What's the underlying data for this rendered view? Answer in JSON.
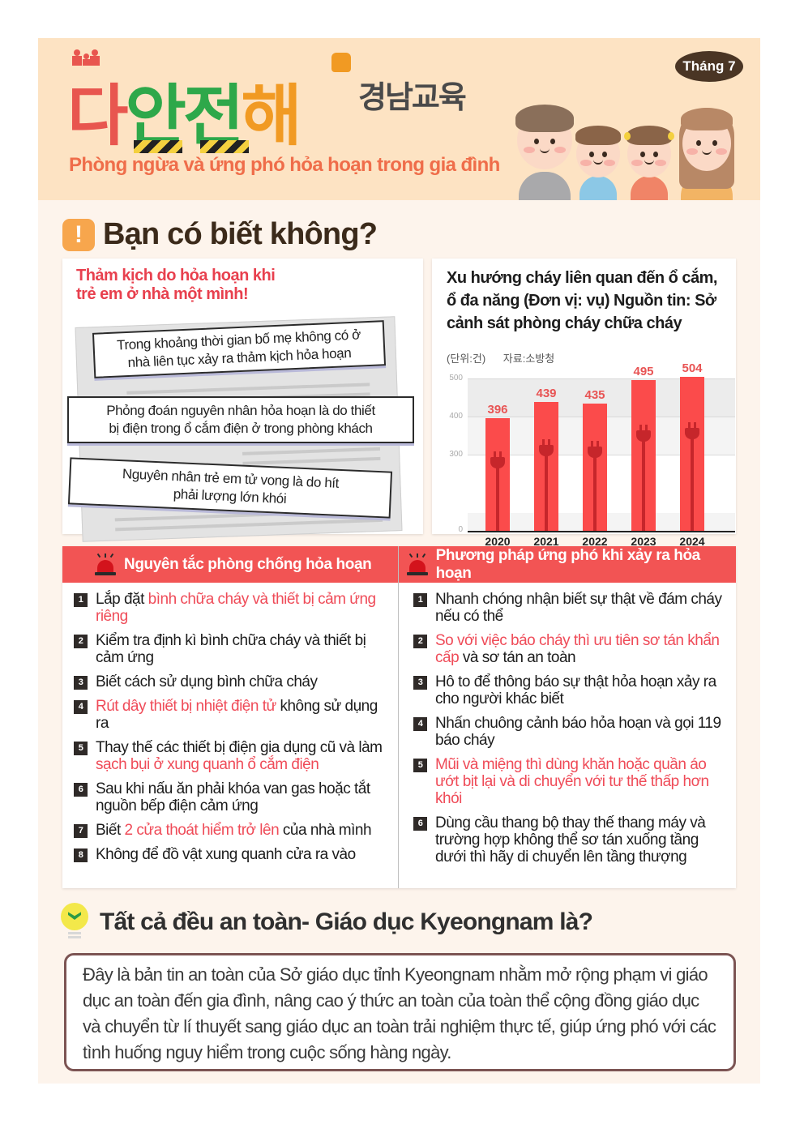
{
  "header": {
    "logo_chars": [
      "다",
      "안",
      "전",
      "해"
    ],
    "logo_sub": "경남교육",
    "subtitle": "Phòng ngừa và ứng phó hỏa hoạn trong gia đình",
    "month_badge": "Tháng 7",
    "illustration": "family-of-four-illustration",
    "colors": {
      "background": "#fde3c3",
      "subtitle": "#ef6d4a",
      "badge": "#4a3524"
    }
  },
  "did_you_know": {
    "icon": "exclamation-icon",
    "title": "Bạn có biết không?",
    "news": {
      "headline_lines": [
        "Thảm kịch do hỏa hoạn khi",
        "trẻ em ở nhà một mình!"
      ],
      "strips": [
        {
          "lines": [
            "Trong khoảng thời gian bố mẹ không có ở",
            "nhà liên tục xảy ra thảm kịch hỏa hoạn"
          ]
        },
        {
          "lines": [
            "Phỏng đoán nguyên nhân hỏa hoạn là do thiết",
            "bị điện trong ổ cắm điện ở trong phòng khách"
          ]
        },
        {
          "lines": [
            "Nguyên nhân trẻ em tử vong là do hít",
            "phải lượng lớn khói"
          ]
        }
      ]
    },
    "chart": {
      "title": "Xu hướng cháy liên quan đến ổ cắm, ổ đa năng (Đơn vị: vụ) Nguồn tin: Sở cảnh sát phòng cháy chữa cháy",
      "unit_label": "(단위:건)",
      "source_label": "자료:소방청",
      "y_ticks": [
        "500",
        "400",
        "300",
        "0"
      ]
    }
  },
  "chart_data": {
    "type": "bar",
    "title": "Xu hướng cháy liên quan đến ổ cắm, ổ đa năng (Đơn vị: vụ) Nguồn tin: Sở cảnh sát phòng cháy chữa cháy",
    "subtitle": "(단위:건) 자료:소방청",
    "categories": [
      "2020",
      "2021",
      "2022",
      "2023",
      "2024"
    ],
    "values": [
      396,
      439,
      435,
      495,
      504
    ],
    "xlabel": "",
    "ylabel": "",
    "y_ticks": [
      0,
      300,
      400,
      500
    ],
    "ylim": [
      0,
      520
    ],
    "axis_break": "between 0 and 300",
    "grid": true,
    "legend": "none",
    "bar_color": "#fb4b4b",
    "label_color": "#e85454"
  },
  "prevention": {
    "icon": "siren-icon",
    "title": "Nguyên tắc phòng chống hỏa hoạn",
    "items": [
      {
        "num": "1",
        "parts": [
          {
            "t": "Lắp đặt ",
            "hl": false
          },
          {
            "t": "bình chữa cháy và thiết bị cảm ứng riêng",
            "hl": true
          }
        ]
      },
      {
        "num": "2",
        "parts": [
          {
            "t": "Kiểm tra định kì bình chữa cháy và thiết bị cảm ứng",
            "hl": false
          }
        ]
      },
      {
        "num": "3",
        "parts": [
          {
            "t": "Biết cách sử dụng bình chữa cháy",
            "hl": false
          }
        ]
      },
      {
        "num": "4",
        "parts": [
          {
            "t": "Rút dây thiết bị nhiệt điện tử",
            "hl": true
          },
          {
            "t": " không sử dụng ra",
            "hl": false
          }
        ]
      },
      {
        "num": "5",
        "parts": [
          {
            "t": "Thay thế các thiết bị điện gia dụng cũ và làm ",
            "hl": false
          },
          {
            "t": "sạch bụi ở xung quanh ổ cắm điện",
            "hl": true
          }
        ]
      },
      {
        "num": "6",
        "parts": [
          {
            "t": "Sau khi nấu ăn phải khóa van gas hoặc tắt nguồn bếp điện cảm ứng",
            "hl": false
          }
        ]
      },
      {
        "num": "7",
        "parts": [
          {
            "t": "Biết ",
            "hl": false
          },
          {
            "t": "2 cửa thoát hiểm trở lên",
            "hl": true
          },
          {
            "t": " của nhà mình",
            "hl": false
          }
        ]
      },
      {
        "num": "8",
        "parts": [
          {
            "t": "Không để đồ vật xung quanh cửa ra vào",
            "hl": false
          }
        ]
      }
    ]
  },
  "response": {
    "icon": "siren-icon",
    "title": "Phương pháp ứng phó khi xảy ra hỏa hoạn",
    "items": [
      {
        "num": "1",
        "parts": [
          {
            "t": "Nhanh chóng nhận biết sự thật về đám cháy nếu có thể",
            "hl": false
          }
        ]
      },
      {
        "num": "2",
        "parts": [
          {
            "t": "So với việc báo cháy thì ưu tiên sơ tán khẩn cấp",
            "hl": true
          },
          {
            "t": " và sơ tán an toàn",
            "hl": false
          }
        ]
      },
      {
        "num": "3",
        "parts": [
          {
            "t": "Hô to để thông báo sự thật hỏa hoạn xảy ra cho người khác biết",
            "hl": false
          }
        ]
      },
      {
        "num": "4",
        "parts": [
          {
            "t": "Nhấn chuông cảnh báo hỏa hoạn và gọi 119 báo cháy",
            "hl": false
          }
        ]
      },
      {
        "num": "5",
        "parts": [
          {
            "t": "Mũi và miệng thì dùng khăn hoặc quần áo ướt bịt lại và di chuyển với tư thế thấp hơn khói",
            "hl": true
          }
        ]
      },
      {
        "num": "6",
        "parts": [
          {
            "t": "Dùng cầu thang bộ thay thế thang máy và trường hợp không thể sơ tán xuống tầng dưới thì hãy di chuyển lên tầng thượng",
            "hl": false
          }
        ]
      }
    ]
  },
  "about": {
    "icon": "lightbulb-check-icon",
    "title": "Tất cả đều an toàn- Giáo dục Kyeongnam là?",
    "body": "Đây là bản tin an toàn của Sở giáo dục tỉnh Kyeongnam nhằm mở rộng phạm vi giáo dục an toàn đến gia đình, nâng cao ý thức an toàn của toàn thể cộng đồng giáo dục và chuyển từ lí thuyết sang giáo dục an toàn trải nghiệm thực tế, giúp ứng phó với các tình huống nguy hiểm trong cuộc sống hàng ngày."
  },
  "colors": {
    "page_bg": "#fdf4ec",
    "accent_red": "#f25454",
    "highlight_text": "#ef4b58",
    "about_border": "#7c5453"
  }
}
